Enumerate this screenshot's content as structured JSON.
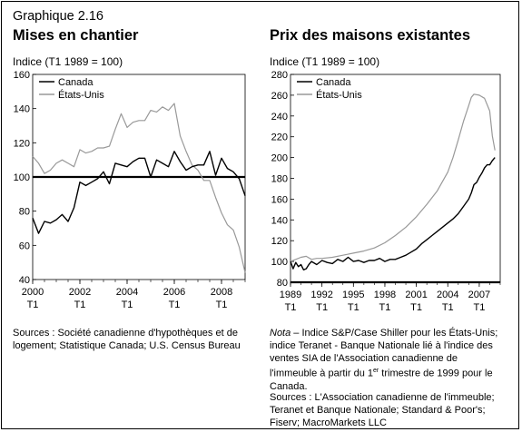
{
  "figure_label": "Graphique 2.16",
  "chart_data": [
    {
      "type": "line",
      "title": "Mises en chantier",
      "ylabel": "Indice (T1 1989 = 100)",
      "xlabel": "",
      "ylim": [
        40,
        160
      ],
      "yticks": [
        40,
        60,
        80,
        100,
        120,
        140,
        160
      ],
      "xlim": [
        2000,
        2009
      ],
      "xticks": [
        2000,
        2002,
        2004,
        2006,
        2008
      ],
      "xtick_labels": [
        "2000",
        "2002",
        "2004",
        "2006",
        "2008"
      ],
      "x_sublabel": "T1",
      "reference_line": 100,
      "legend": "top-left",
      "grid": false,
      "series": [
        {
          "name": "Canada",
          "color": "#000000",
          "x": [
            2000.0,
            2000.25,
            2000.5,
            2000.75,
            2001.0,
            2001.25,
            2001.5,
            2001.75,
            2002.0,
            2002.25,
            2002.5,
            2002.75,
            2003.0,
            2003.25,
            2003.5,
            2003.75,
            2004.0,
            2004.25,
            2004.5,
            2004.75,
            2005.0,
            2005.25,
            2005.5,
            2005.75,
            2006.0,
            2006.25,
            2006.5,
            2006.75,
            2007.0,
            2007.25,
            2007.5,
            2007.75,
            2008.0,
            2008.25,
            2008.5,
            2008.75,
            2009.0
          ],
          "values": [
            76,
            67,
            74,
            73,
            75,
            78,
            74,
            82,
            97,
            95,
            97,
            99,
            103,
            96,
            108,
            107,
            106,
            109,
            111,
            111,
            100,
            110,
            108,
            106,
            115,
            109,
            104,
            106,
            107,
            107,
            115,
            101,
            111,
            105,
            103,
            99,
            89
          ]
        },
        {
          "name": "États-Unis",
          "color": "#999999",
          "x": [
            2000.0,
            2000.25,
            2000.5,
            2000.75,
            2001.0,
            2001.25,
            2001.5,
            2001.75,
            2002.0,
            2002.25,
            2002.5,
            2002.75,
            2003.0,
            2003.25,
            2003.5,
            2003.75,
            2004.0,
            2004.25,
            2004.5,
            2004.75,
            2005.0,
            2005.25,
            2005.5,
            2005.75,
            2006.0,
            2006.25,
            2006.5,
            2006.75,
            2007.0,
            2007.25,
            2007.5,
            2007.75,
            2008.0,
            2008.25,
            2008.5,
            2008.75,
            2009.0
          ],
          "values": [
            112,
            108,
            102,
            104,
            108,
            110,
            108,
            106,
            116,
            114,
            115,
            117,
            117,
            118,
            128,
            137,
            129,
            132,
            133,
            133,
            139,
            138,
            141,
            139,
            143,
            124,
            115,
            107,
            104,
            98,
            98,
            88,
            79,
            72,
            69,
            59,
            44
          ]
        }
      ]
    },
    {
      "type": "line",
      "title": "Prix des maisons existantes",
      "ylabel": "Indice (T1 1989 = 100)",
      "xlabel": "",
      "ylim": [
        80,
        280
      ],
      "yticks": [
        80,
        100,
        120,
        140,
        160,
        180,
        200,
        220,
        240,
        260,
        280
      ],
      "xlim": [
        1989,
        2009
      ],
      "xticks": [
        1989,
        1992,
        1995,
        1998,
        2001,
        2004,
        2007
      ],
      "xtick_labels": [
        "1989",
        "1992",
        "1995",
        "1998",
        "2001",
        "2004",
        "2007"
      ],
      "x_sublabel": "T1",
      "legend": "top-left",
      "grid": false,
      "series": [
        {
          "name": "Canada",
          "color": "#000000",
          "x": [
            1989,
            1989.25,
            1989.5,
            1989.75,
            1990,
            1990.25,
            1990.5,
            1990.75,
            1991,
            1991.5,
            1992,
            1992.5,
            1993,
            1993.5,
            1994,
            1994.5,
            1995,
            1995.5,
            1996,
            1996.5,
            1997,
            1997.5,
            1998,
            1998.5,
            1999,
            1999.5,
            2000,
            2000.5,
            2001,
            2001.5,
            2002,
            2002.5,
            2003,
            2003.5,
            2004,
            2004.5,
            2005,
            2005.5,
            2006,
            2006.25,
            2006.5,
            2006.75,
            2007,
            2007.25,
            2007.5,
            2007.75,
            2008,
            2008.25,
            2008.5
          ],
          "values": [
            100,
            93,
            99,
            95,
            97,
            92,
            93,
            97,
            100,
            97,
            101,
            99,
            98,
            102,
            100,
            104,
            100,
            101,
            99,
            101,
            101,
            103,
            100,
            102,
            102,
            104,
            106,
            109,
            112,
            117,
            121,
            125,
            129,
            133,
            137,
            141,
            146,
            153,
            160,
            166,
            174,
            176,
            181,
            185,
            190,
            193,
            193,
            197,
            200
          ]
        },
        {
          "name": "États-Unis",
          "color": "#999999",
          "x": [
            1989,
            1989.5,
            1990,
            1990.5,
            1991,
            1991.5,
            1992,
            1993,
            1994,
            1995,
            1996,
            1997,
            1998,
            1999,
            2000,
            2001,
            2002,
            2003,
            2004,
            2004.5,
            2005,
            2005.5,
            2006,
            2006.25,
            2006.5,
            2007,
            2007.5,
            2008,
            2008.25,
            2008.5
          ],
          "values": [
            100,
            102,
            104,
            105,
            102,
            103,
            103,
            104,
            106,
            108,
            110,
            113,
            118,
            125,
            133,
            143,
            155,
            168,
            186,
            200,
            217,
            235,
            250,
            258,
            261,
            260,
            257,
            245,
            221,
            207
          ]
        }
      ]
    }
  ],
  "sources_left": "Sources : Société canadienne d'hypothèques et de logement; Statistique Canada; U.S. Census Bureau",
  "nota_label": "Nota",
  "nota_text": " – Indice S&P/Case Shiller pour les États-Unis; indice Teranet - Banque Nationale lié à l'indice des ventes SIA de l'Association canadienne de l'immeuble à partir du 1",
  "nota_sup": "er",
  "nota_text_end": " trimestre de 1999 pour le Canada.",
  "sources_right": "Sources : L'Association canadienne de l'immeuble; Teranet et Banque Nationale; Standard & Poor's; Fiserv; MacroMarkets LLC"
}
